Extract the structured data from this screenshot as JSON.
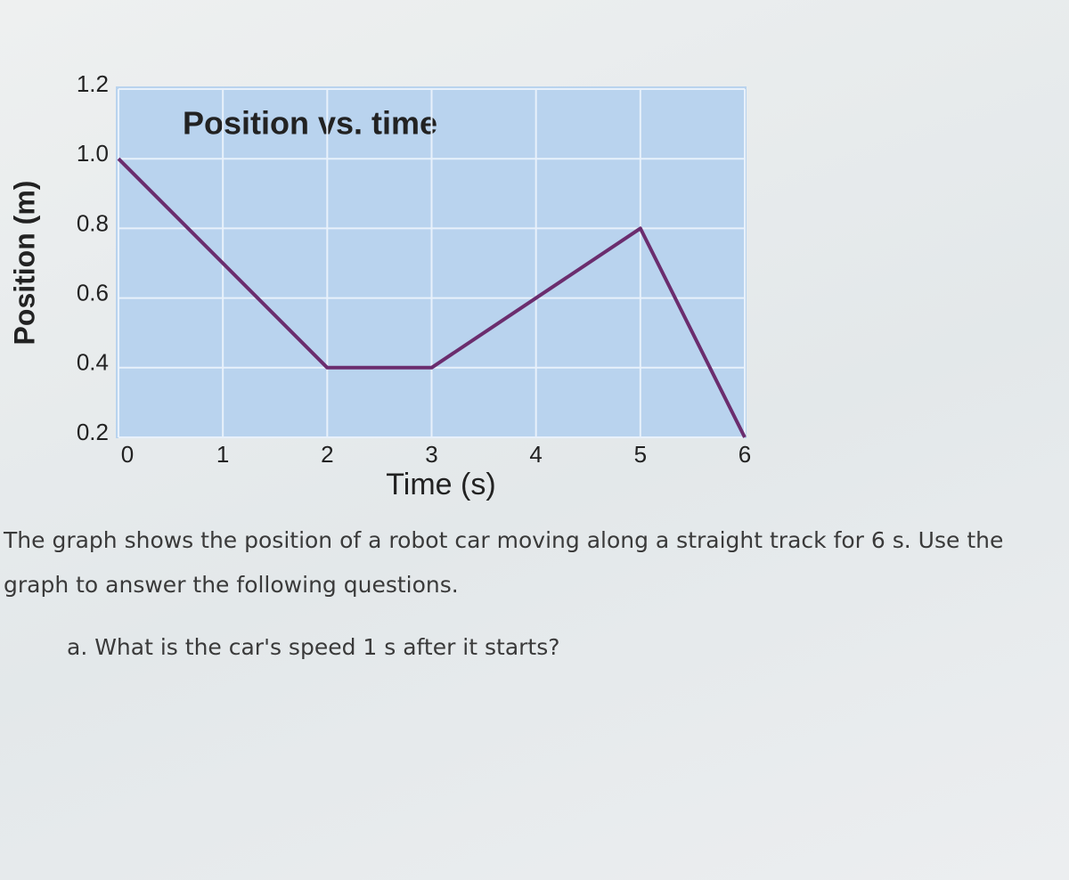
{
  "chart_data": {
    "type": "line",
    "title": "Position vs. time",
    "x_label": "Time (s)",
    "y_label": "Position (m)",
    "x": [
      0,
      2,
      3,
      5,
      6
    ],
    "values": [
      1.0,
      0.4,
      0.4,
      0.8,
      0.2
    ],
    "color": "#6b2d6e",
    "xlim": [
      0,
      6
    ],
    "xticks": [
      0,
      1,
      2,
      3,
      4,
      5,
      6
    ],
    "ylim": [
      0.2,
      1.2
    ],
    "yticks": [
      0.2,
      0.4,
      0.6,
      0.8,
      {
        "value": 1,
        "label": "1.0"
      },
      1.2
    ],
    "grid": true
  },
  "text": {
    "paragraph": "The graph shows the position of a robot car moving along a straight track for 6 s. Use the graph to answer the following questions.",
    "question": "a. What is the car's speed 1 s after it starts?"
  }
}
